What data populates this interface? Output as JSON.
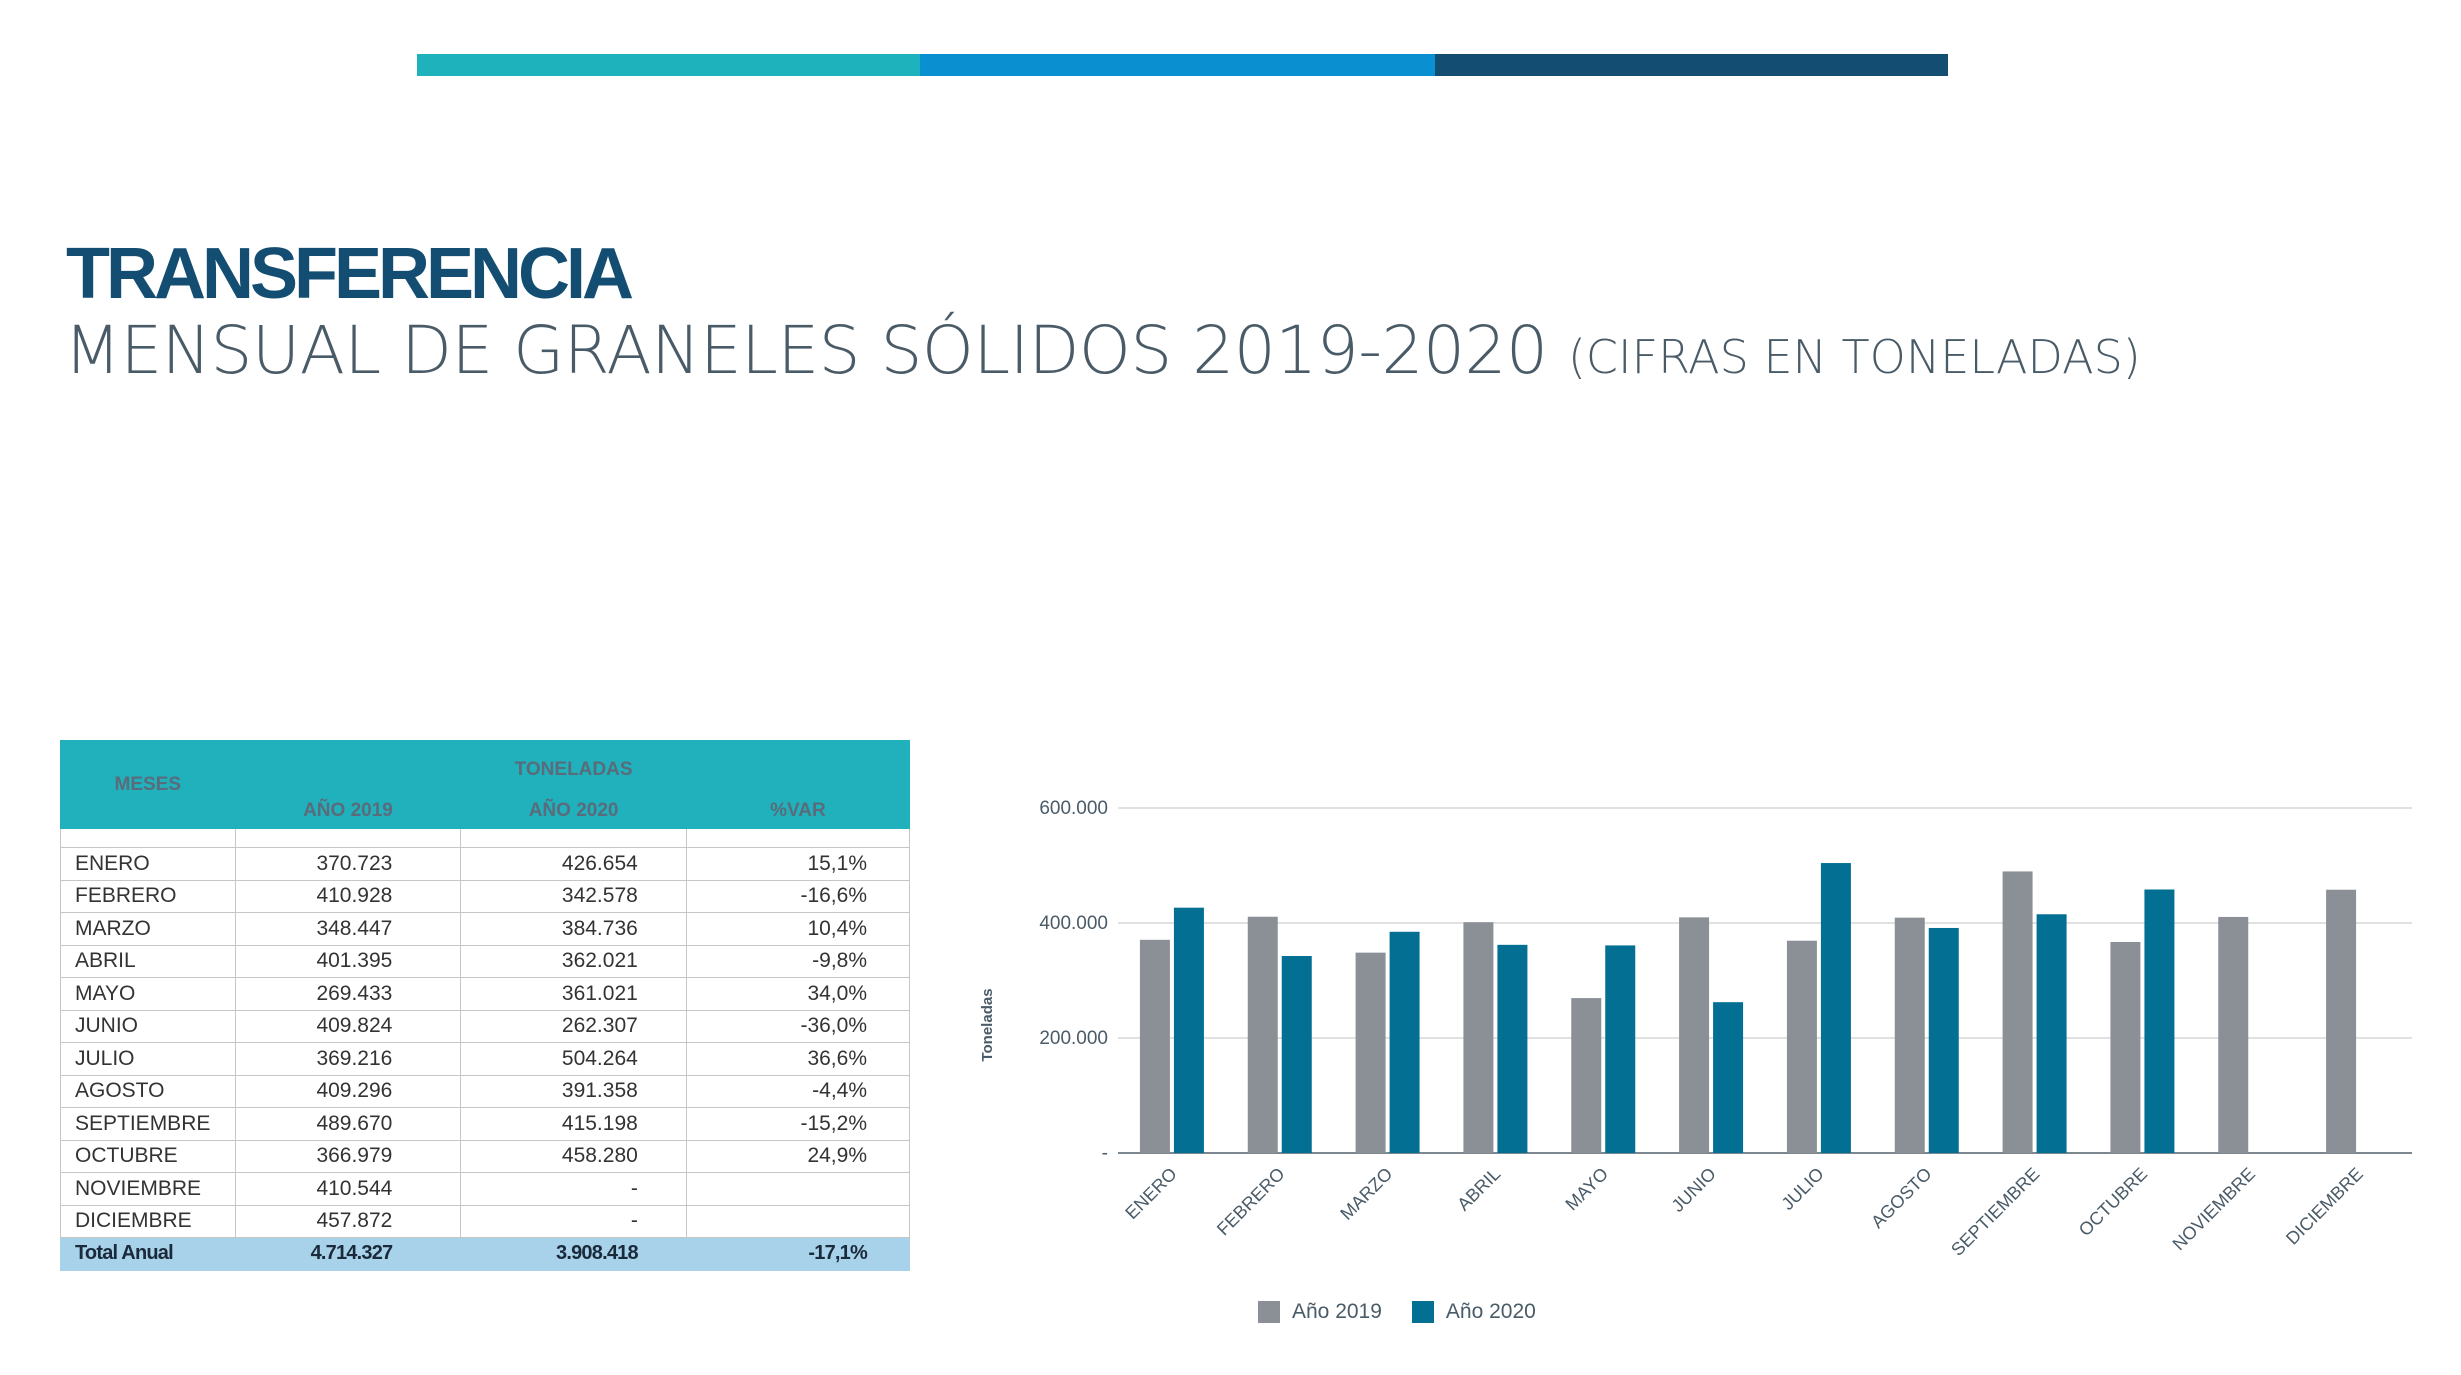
{
  "colors": {
    "bar_teal": "#1eb2bc",
    "bar_blue": "#0a8fd1",
    "bar_navy": "#134e72",
    "series_2019": "#8b9096",
    "series_2020": "#036f93",
    "table_header": "#20b1bd",
    "total_row": "#a8d2ea"
  },
  "header": {
    "title_bold": "TRANSFERENCIA",
    "title_main": "MENSUAL DE GRANELES SÓLIDOS",
    "title_years": "2019-2020",
    "title_note": "(CIFRAS EN TONELADAS)"
  },
  "table": {
    "col_months": "MESES",
    "col_group": "TONELADAS",
    "col_2019": "AÑO 2019",
    "col_2020": "AÑO 2020",
    "col_var": "%VAR",
    "rows": [
      {
        "month": "ENERO",
        "v2019": "370.723",
        "v2020": "426.654",
        "var": "15,1%"
      },
      {
        "month": "FEBRERO",
        "v2019": "410.928",
        "v2020": "342.578",
        "var": "-16,6%"
      },
      {
        "month": "MARZO",
        "v2019": "348.447",
        "v2020": "384.736",
        "var": "10,4%"
      },
      {
        "month": "ABRIL",
        "v2019": "401.395",
        "v2020": "362.021",
        "var": "-9,8%"
      },
      {
        "month": "MAYO",
        "v2019": "269.433",
        "v2020": "361.021",
        "var": "34,0%"
      },
      {
        "month": "JUNIO",
        "v2019": "409.824",
        "v2020": "262.307",
        "var": "-36,0%"
      },
      {
        "month": "JULIO",
        "v2019": "369.216",
        "v2020": "504.264",
        "var": "36,6%"
      },
      {
        "month": "AGOSTO",
        "v2019": "409.296",
        "v2020": "391.358",
        "var": "-4,4%"
      },
      {
        "month": "SEPTIEMBRE",
        "v2019": "489.670",
        "v2020": "415.198",
        "var": "-15,2%"
      },
      {
        "month": "OCTUBRE",
        "v2019": "366.979",
        "v2020": "458.280",
        "var": "24,9%"
      },
      {
        "month": "NOVIEMBRE",
        "v2019": "410.544",
        "v2020": "-",
        "var": ""
      },
      {
        "month": "DICIEMBRE",
        "v2019": "457.872",
        "v2020": "-",
        "var": ""
      }
    ],
    "total": {
      "label": "Total Anual",
      "v2019": "4.714.327",
      "v2020": "3.908.418",
      "var": "-17,1%"
    }
  },
  "chart_data": {
    "type": "bar",
    "ylabel": "Toneladas",
    "xlabel": "",
    "ylim": [
      0,
      600000
    ],
    "yticks": [
      {
        "value": 0,
        "label": "-"
      },
      {
        "value": 200000,
        "label": "200.000"
      },
      {
        "value": 400000,
        "label": "400.000"
      },
      {
        "value": 600000,
        "label": "600.000"
      }
    ],
    "grid": true,
    "legend": "bottom",
    "categories": [
      "ENERO",
      "FEBRERO",
      "MARZO",
      "ABRIL",
      "MAYO",
      "JUNIO",
      "JULIO",
      "AGOSTO",
      "SEPTIEMBRE",
      "OCTUBRE",
      "NOVIEMBRE",
      "DICIEMBRE"
    ],
    "series": [
      {
        "name": "Año 2019",
        "color": "#8b9096",
        "values": [
          370723,
          410928,
          348447,
          401395,
          269433,
          409824,
          369216,
          409296,
          489670,
          366979,
          410544,
          457872
        ]
      },
      {
        "name": "Año 2020",
        "color": "#036f93",
        "values": [
          426654,
          342578,
          384736,
          362021,
          361021,
          262307,
          504264,
          391358,
          415198,
          458280,
          null,
          null
        ]
      }
    ]
  }
}
